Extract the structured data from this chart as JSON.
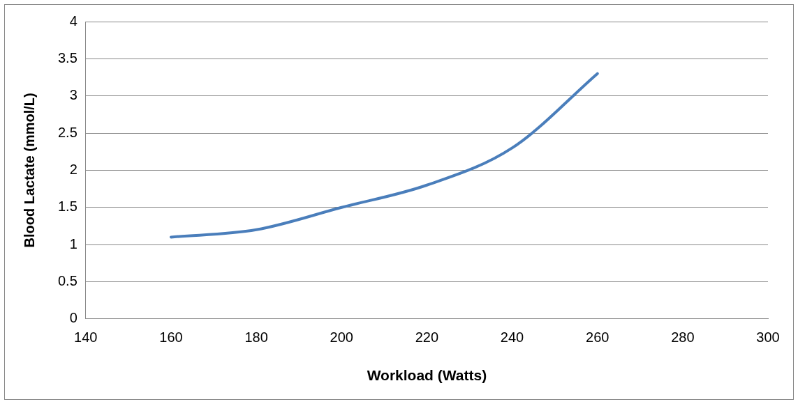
{
  "chart_data": {
    "type": "line",
    "xlabel": "Workload (Watts)",
    "ylabel": "Blood Lactate (mmol/L)",
    "x": [
      160,
      180,
      200,
      220,
      240,
      260
    ],
    "series": [
      {
        "color": "#4a7ebb",
        "values": [
          1.1,
          1.2,
          1.5,
          1.8,
          2.3,
          3.3
        ]
      }
    ],
    "xlim": [
      140,
      300
    ],
    "xticks": [
      140,
      160,
      180,
      200,
      220,
      240,
      260,
      280,
      300
    ],
    "ylim": [
      0,
      4
    ],
    "yticks": [
      0,
      0.5,
      1,
      1.5,
      2,
      2.5,
      3,
      3.5,
      4
    ],
    "grid": "y",
    "marker": "none",
    "line_style": "solid"
  }
}
